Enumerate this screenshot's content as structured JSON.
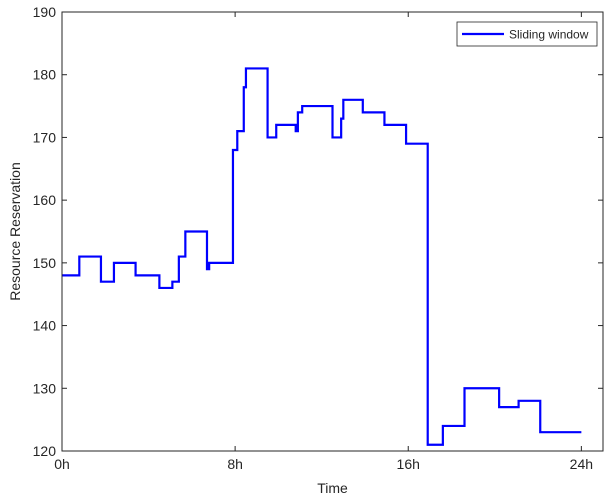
{
  "chart_data": {
    "type": "line",
    "title": "",
    "xlabel": "Time",
    "ylabel": "Resource Reservation",
    "xlim": [
      0,
      25
    ],
    "ylim": [
      120,
      190
    ],
    "x_ticks": [
      0,
      8,
      16,
      24
    ],
    "x_tick_labels": [
      "0h",
      "8h",
      "16h",
      "24h"
    ],
    "y_ticks": [
      120,
      130,
      140,
      150,
      160,
      170,
      180,
      190
    ],
    "y_tick_labels": [
      "120",
      "130",
      "140",
      "150",
      "160",
      "170",
      "180",
      "190"
    ],
    "grid": false,
    "legend": {
      "position": "top-right",
      "entries": [
        "Sliding window"
      ]
    },
    "series": [
      {
        "name": "Sliding window",
        "color": "#0000ff",
        "step": true,
        "points": [
          [
            0.0,
            148
          ],
          [
            0.8,
            151
          ],
          [
            1.8,
            147
          ],
          [
            2.4,
            150
          ],
          [
            3.4,
            148
          ],
          [
            4.5,
            146
          ],
          [
            5.1,
            147
          ],
          [
            5.4,
            151
          ],
          [
            5.7,
            155
          ],
          [
            6.7,
            149
          ],
          [
            6.8,
            150
          ],
          [
            7.9,
            168
          ],
          [
            8.1,
            171
          ],
          [
            8.4,
            178
          ],
          [
            8.5,
            181
          ],
          [
            9.5,
            170
          ],
          [
            9.9,
            172
          ],
          [
            10.8,
            171
          ],
          [
            10.9,
            174
          ],
          [
            11.1,
            175
          ],
          [
            12.5,
            170
          ],
          [
            12.9,
            173
          ],
          [
            13.0,
            176
          ],
          [
            13.9,
            174
          ],
          [
            14.9,
            172
          ],
          [
            15.9,
            169
          ],
          [
            16.9,
            121
          ],
          [
            17.6,
            124
          ],
          [
            18.6,
            130
          ],
          [
            20.2,
            127
          ],
          [
            21.1,
            128
          ],
          [
            22.1,
            123
          ],
          [
            24.0,
            123
          ]
        ]
      }
    ]
  }
}
